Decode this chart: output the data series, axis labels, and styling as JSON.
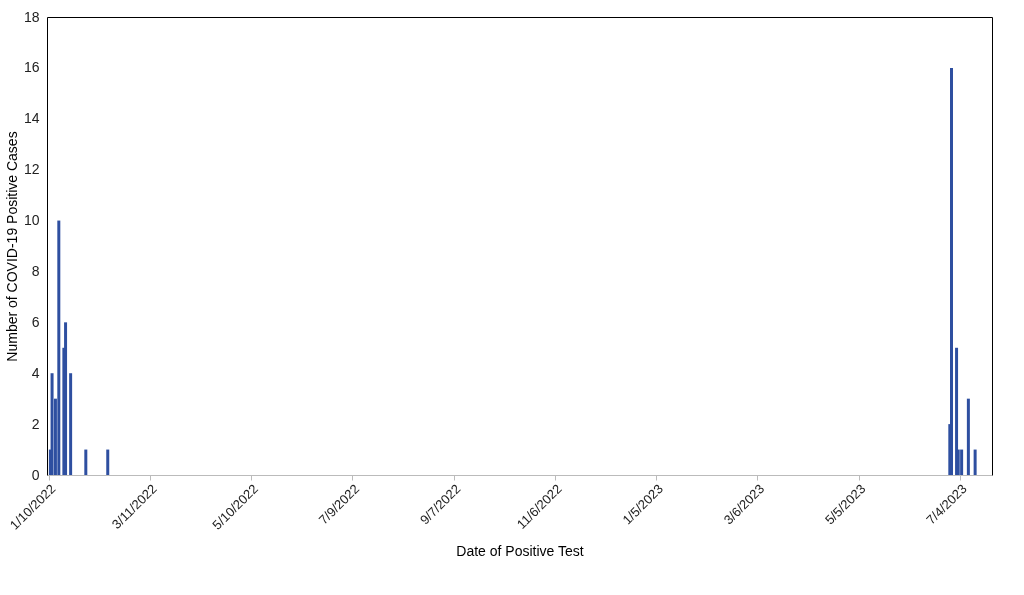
{
  "chart_data": {
    "type": "bar",
    "xlabel": "Date of Positive Test",
    "ylabel": "Number of COVID-19 Positive Cases",
    "x": [
      "2022-01-11",
      "2022-01-12",
      "2022-01-14",
      "2022-01-16",
      "2022-01-19",
      "2022-01-20",
      "2022-01-23",
      "2022-02-01",
      "2022-02-14",
      "2023-06-28",
      "2023-06-29",
      "2023-07-02",
      "2023-07-03",
      "2023-07-05",
      "2023-07-09",
      "2023-07-13"
    ],
    "values": [
      1,
      4,
      3,
      10,
      5,
      6,
      4,
      1,
      1,
      2,
      16,
      5,
      1,
      1,
      3,
      1
    ],
    "color": "#2e4fa0",
    "xlim": [
      "2022-01-09",
      "2023-07-23"
    ],
    "xticks": [
      {
        "value": "2022-01-10",
        "label": "1/10/2022"
      },
      {
        "value": "2022-03-11",
        "label": "3/11/2022"
      },
      {
        "value": "2022-05-10",
        "label": "5/10/2022"
      },
      {
        "value": "2022-07-09",
        "label": "7/9/2022"
      },
      {
        "value": "2022-09-07",
        "label": "9/7/2022"
      },
      {
        "value": "2022-11-06",
        "label": "11/6/2022"
      },
      {
        "value": "2023-01-05",
        "label": "1/5/2023"
      },
      {
        "value": "2023-03-06",
        "label": "3/6/2023"
      },
      {
        "value": "2023-05-05",
        "label": "5/5/2023"
      },
      {
        "value": "2023-07-04",
        "label": "7/4/2023"
      }
    ],
    "ylim": [
      0,
      18
    ],
    "yticks": [
      0,
      2,
      4,
      6,
      8,
      10,
      12,
      14,
      16,
      18
    ],
    "grid": false
  }
}
